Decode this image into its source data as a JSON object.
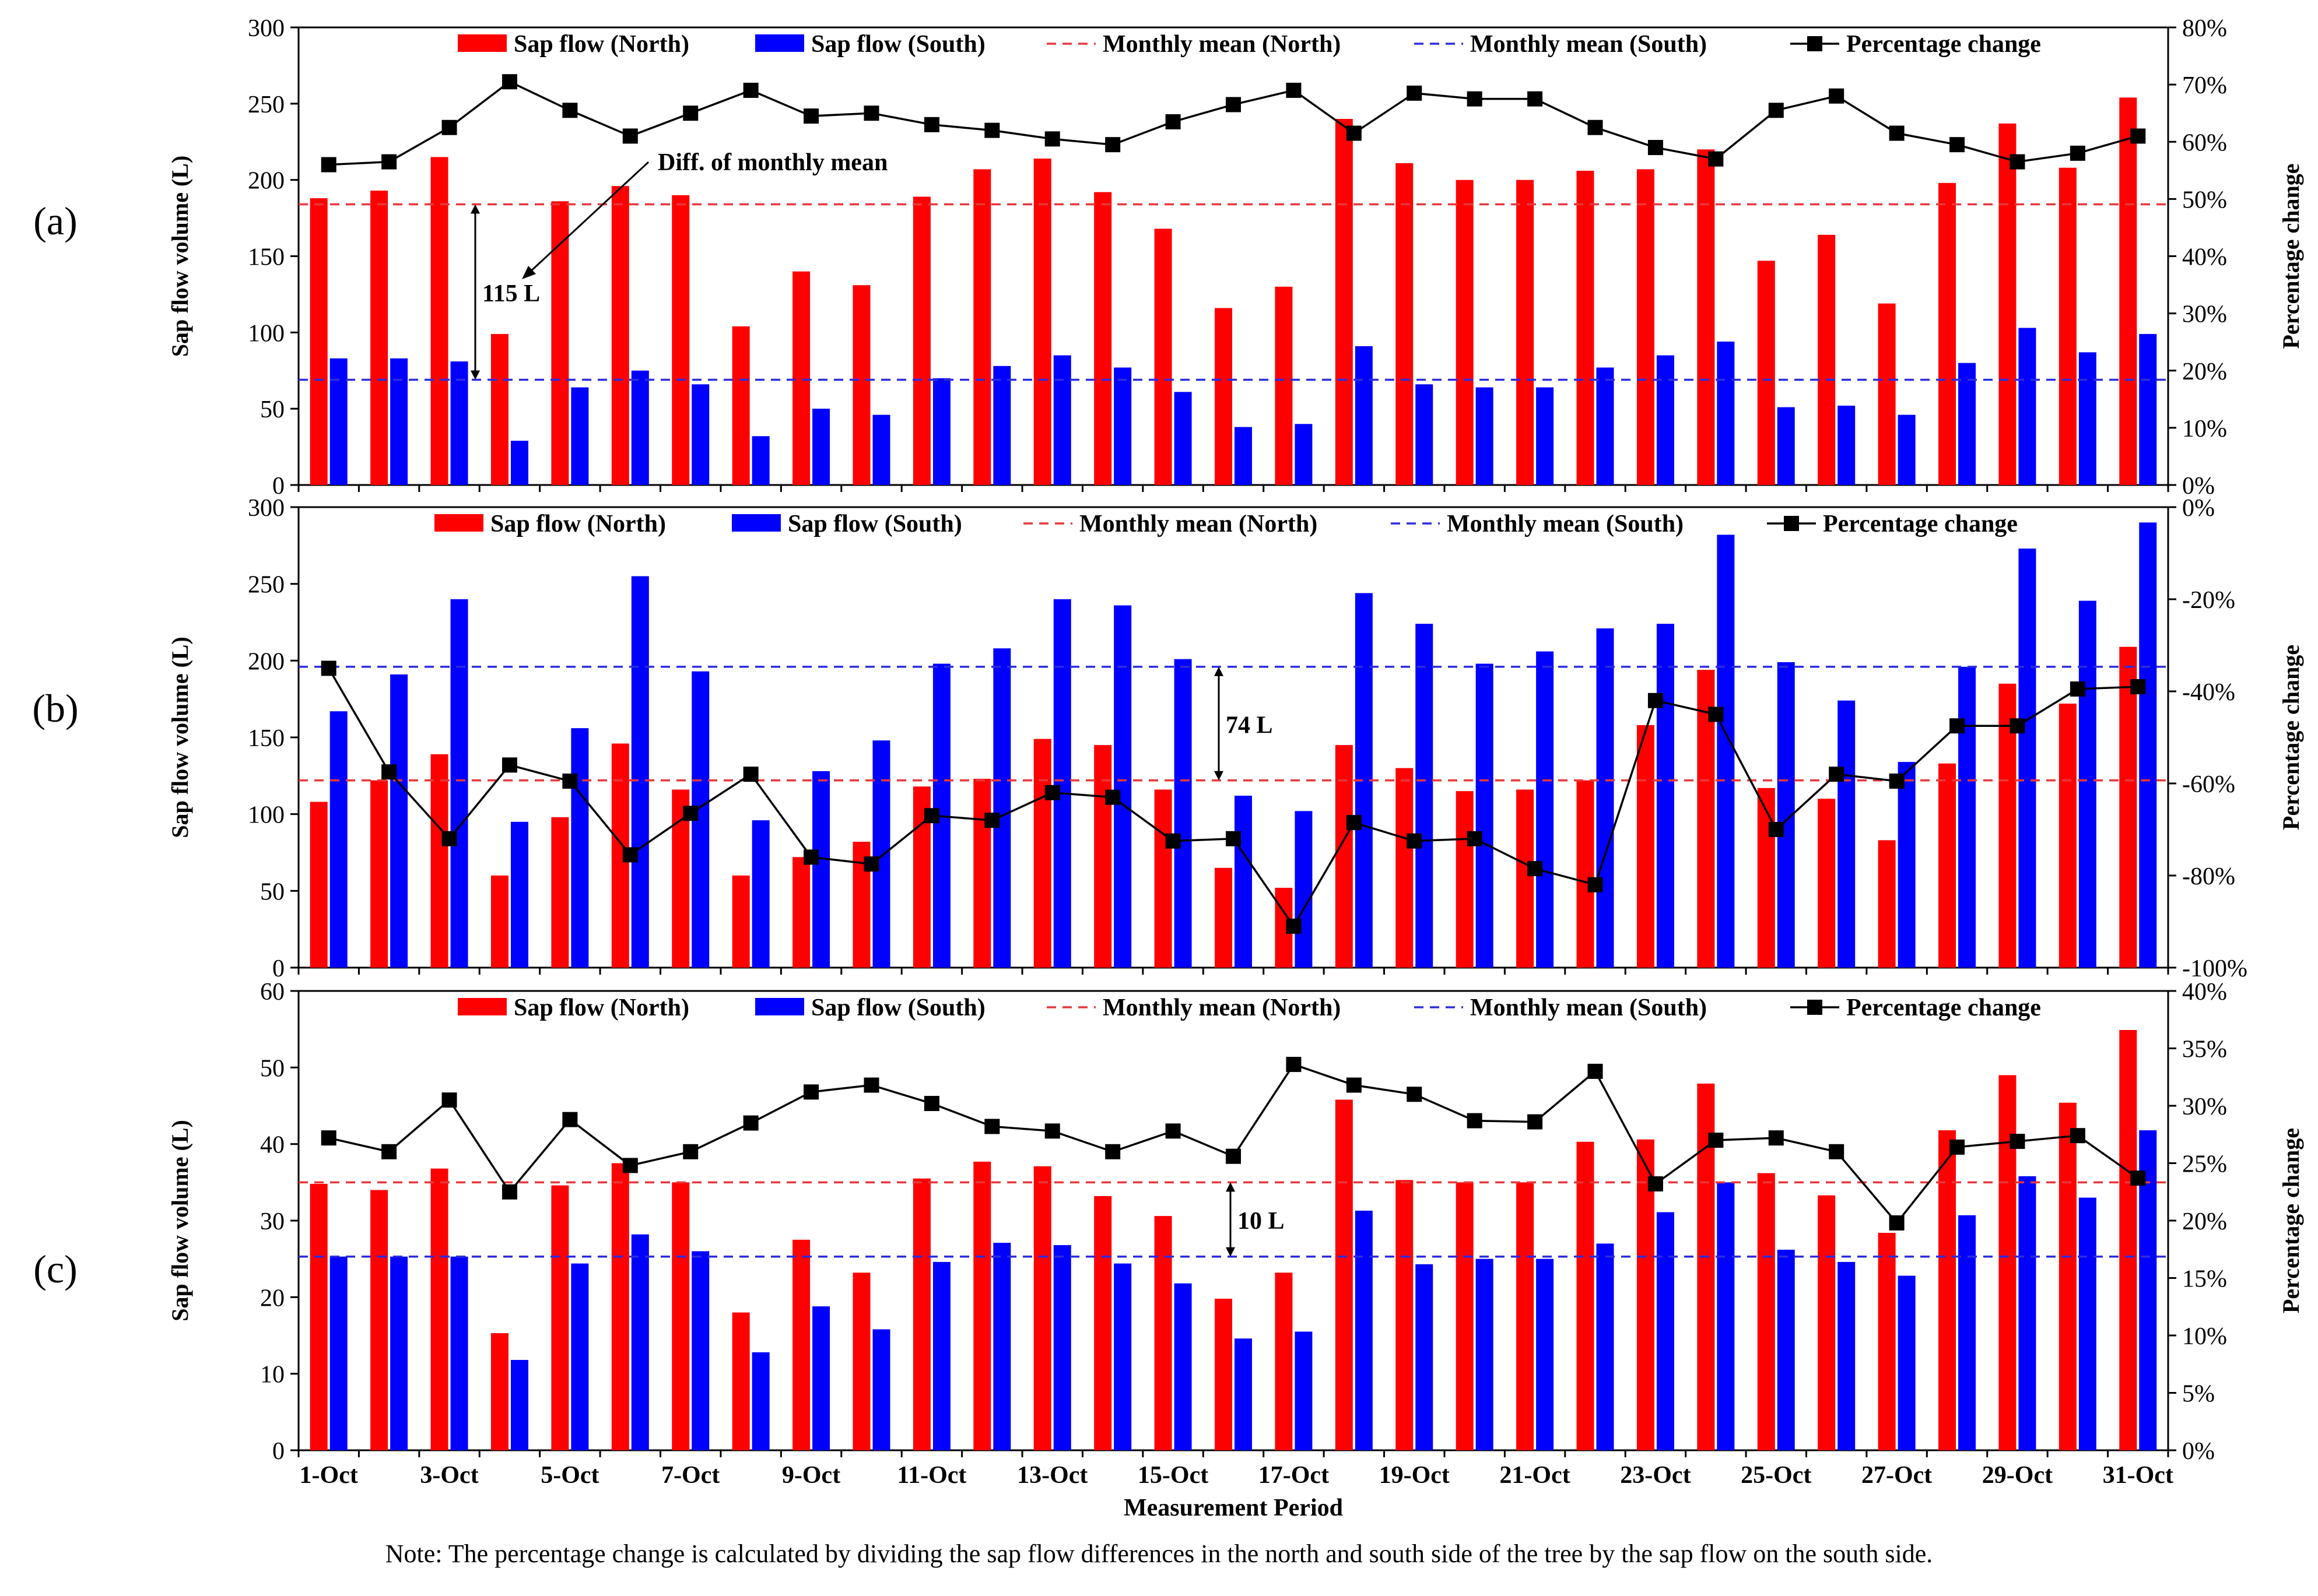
{
  "figure": {
    "xlabel": "Measurement Period",
    "note": "Note: The percentage change is calculated by dividing the sap flow differences in the north and south side of the tree by the sap flow on the south side.",
    "x_tick_labels": [
      "1-Oct",
      "3-Oct",
      "5-Oct",
      "7-Oct",
      "9-Oct",
      "11-Oct",
      "13-Oct",
      "15-Oct",
      "17-Oct",
      "19-Oct",
      "21-Oct",
      "23-Oct",
      "25-Oct",
      "27-Oct",
      "29-Oct",
      "31-Oct"
    ],
    "legend": [
      "Sap flow (North)",
      "Sap flow (South)",
      "Monthly mean (North)",
      "Monthly mean (South)",
      "Percentage change"
    ],
    "colors": {
      "north": "#ff0000",
      "south": "#0000ff",
      "mean_north": "#e8373a",
      "mean_south": "#2c2ce0",
      "pct": "#000000"
    }
  },
  "chart_data": [
    {
      "type": "bar",
      "panel_label": "(a)",
      "ylabel": "Sap flow volume (L)",
      "y2label": "Percentage change",
      "ylim": [
        0,
        300
      ],
      "yticks": [
        "0",
        "50",
        "100",
        "150",
        "200",
        "250",
        "300"
      ],
      "y2lim": [
        0,
        80
      ],
      "y2ticks": [
        "0%",
        "10%",
        "20%",
        "30%",
        "40%",
        "50%",
        "60%",
        "70%",
        "80%"
      ],
      "series": [
        {
          "name": "Sap flow (North)",
          "values": [
            188,
            193,
            215,
            99,
            186,
            196,
            190,
            104,
            140,
            131,
            189,
            207,
            214,
            192,
            168,
            116,
            130,
            240,
            211,
            200,
            200,
            206,
            207,
            220,
            147,
            164,
            119,
            198,
            237,
            208,
            254
          ]
        },
        {
          "name": "Sap flow (South)",
          "values": [
            83,
            83,
            81,
            29,
            64,
            75,
            66,
            32,
            50,
            46,
            70,
            78,
            85,
            77,
            61,
            38,
            40,
            91,
            66,
            64,
            64,
            77,
            85,
            94,
            51,
            52,
            46,
            80,
            103,
            87,
            99
          ]
        },
        {
          "name": "Monthly mean (North)",
          "value": 184
        },
        {
          "name": "Monthly mean (South)",
          "value": 69
        },
        {
          "name": "Percentage change",
          "values": [
            56,
            56.5,
            62.5,
            70.5,
            65.5,
            61,
            65,
            69,
            64.5,
            65,
            63,
            62,
            60.5,
            59.5,
            63.5,
            66.5,
            69,
            61.5,
            68.5,
            67.5,
            67.5,
            62.5,
            59,
            57,
            65.5,
            68,
            61.5,
            59.5,
            56.5,
            58,
            61
          ]
        }
      ],
      "annotations": [
        {
          "text": "Diff. of monthly mean"
        },
        {
          "text": "115 L"
        }
      ]
    },
    {
      "type": "bar",
      "panel_label": "(b)",
      "ylabel": "Sap flow volume (L)",
      "y2label": "Percentage change",
      "ylim": [
        0,
        300
      ],
      "yticks": [
        "0",
        "50",
        "100",
        "150",
        "200",
        "250",
        "300"
      ],
      "y2lim": [
        -100,
        0
      ],
      "y2ticks": [
        "-100%",
        "-80%",
        "-60%",
        "-40%",
        "-20%",
        "0%"
      ],
      "series": [
        {
          "name": "Sap flow (North)",
          "values": [
            108,
            122,
            139,
            60,
            98,
            146,
            116,
            60,
            72,
            82,
            118,
            123,
            149,
            145,
            116,
            65,
            52,
            145,
            130,
            115,
            116,
            122,
            158,
            194,
            117,
            110,
            83,
            133,
            185,
            172,
            209
          ]
        },
        {
          "name": "Sap flow (South)",
          "values": [
            167,
            191,
            240,
            95,
            156,
            255,
            193,
            96,
            128,
            148,
            198,
            208,
            240,
            236,
            201,
            112,
            102,
            244,
            224,
            198,
            206,
            221,
            224,
            282,
            199,
            174,
            134,
            196,
            273,
            239,
            290
          ]
        },
        {
          "name": "Monthly mean (North)",
          "value": 122
        },
        {
          "name": "Monthly mean (South)",
          "value": 196
        },
        {
          "name": "Percentage change",
          "values": [
            -35,
            -57.5,
            -72,
            -56,
            -59.5,
            -75.5,
            -66.5,
            -58,
            -76,
            -77.5,
            -67,
            -68,
            -62,
            -63,
            -72.5,
            -72,
            -91,
            -68.5,
            -72.5,
            -72,
            -78.5,
            -82,
            -42,
            -45,
            -70,
            -58,
            -59.5,
            -47.5,
            -47.5,
            -39.5,
            -39
          ]
        }
      ],
      "annotations": [
        {
          "text": "74 L"
        }
      ]
    },
    {
      "type": "bar",
      "panel_label": "(c)",
      "ylabel": "Sap flow volume (L)",
      "y2label": "Percentage change",
      "ylim": [
        0,
        60
      ],
      "yticks": [
        "0",
        "10",
        "20",
        "30",
        "40",
        "50",
        "60"
      ],
      "y2lim": [
        0,
        40
      ],
      "y2ticks": [
        "0%",
        "5%",
        "10%",
        "15%",
        "20%",
        "25%",
        "30%",
        "35%",
        "40%"
      ],
      "series": [
        {
          "name": "Sap flow (North)",
          "values": [
            34.8,
            34,
            36.8,
            15.3,
            34.6,
            37.5,
            35,
            18,
            27.5,
            23.2,
            35.5,
            37.7,
            37.1,
            33.2,
            30.6,
            19.8,
            23.2,
            45.8,
            35.3,
            35,
            35,
            40.3,
            40.6,
            47.9,
            36.2,
            33.3,
            28.4,
            41.8,
            49,
            45.4,
            54.9
          ]
        },
        {
          "name": "Sap flow (South)",
          "values": [
            25.3,
            25.3,
            25.3,
            11.8,
            24.4,
            28.2,
            26,
            12.8,
            18.8,
            15.8,
            24.6,
            27.1,
            26.8,
            24.4,
            21.8,
            14.6,
            15.5,
            31.3,
            24.3,
            25,
            25,
            27,
            31.1,
            35,
            26.2,
            24.6,
            22.8,
            30.7,
            35.8,
            33,
            41.8
          ]
        },
        {
          "name": "Monthly mean (North)",
          "value": 35
        },
        {
          "name": "Monthly mean (South)",
          "value": 25.3
        },
        {
          "name": "Percentage change",
          "values": [
            27.2,
            26,
            30.5,
            22.5,
            28.8,
            24.8,
            26,
            28.5,
            31.2,
            31.8,
            30.2,
            28.2,
            27.8,
            26,
            27.8,
            25.6,
            33.6,
            31.8,
            31,
            28.7,
            28.6,
            33,
            23.2,
            27,
            27.2,
            26,
            19.8,
            26.4,
            26.9,
            27.4,
            23.7
          ]
        }
      ],
      "annotations": [
        {
          "text": "10 L"
        }
      ]
    }
  ]
}
